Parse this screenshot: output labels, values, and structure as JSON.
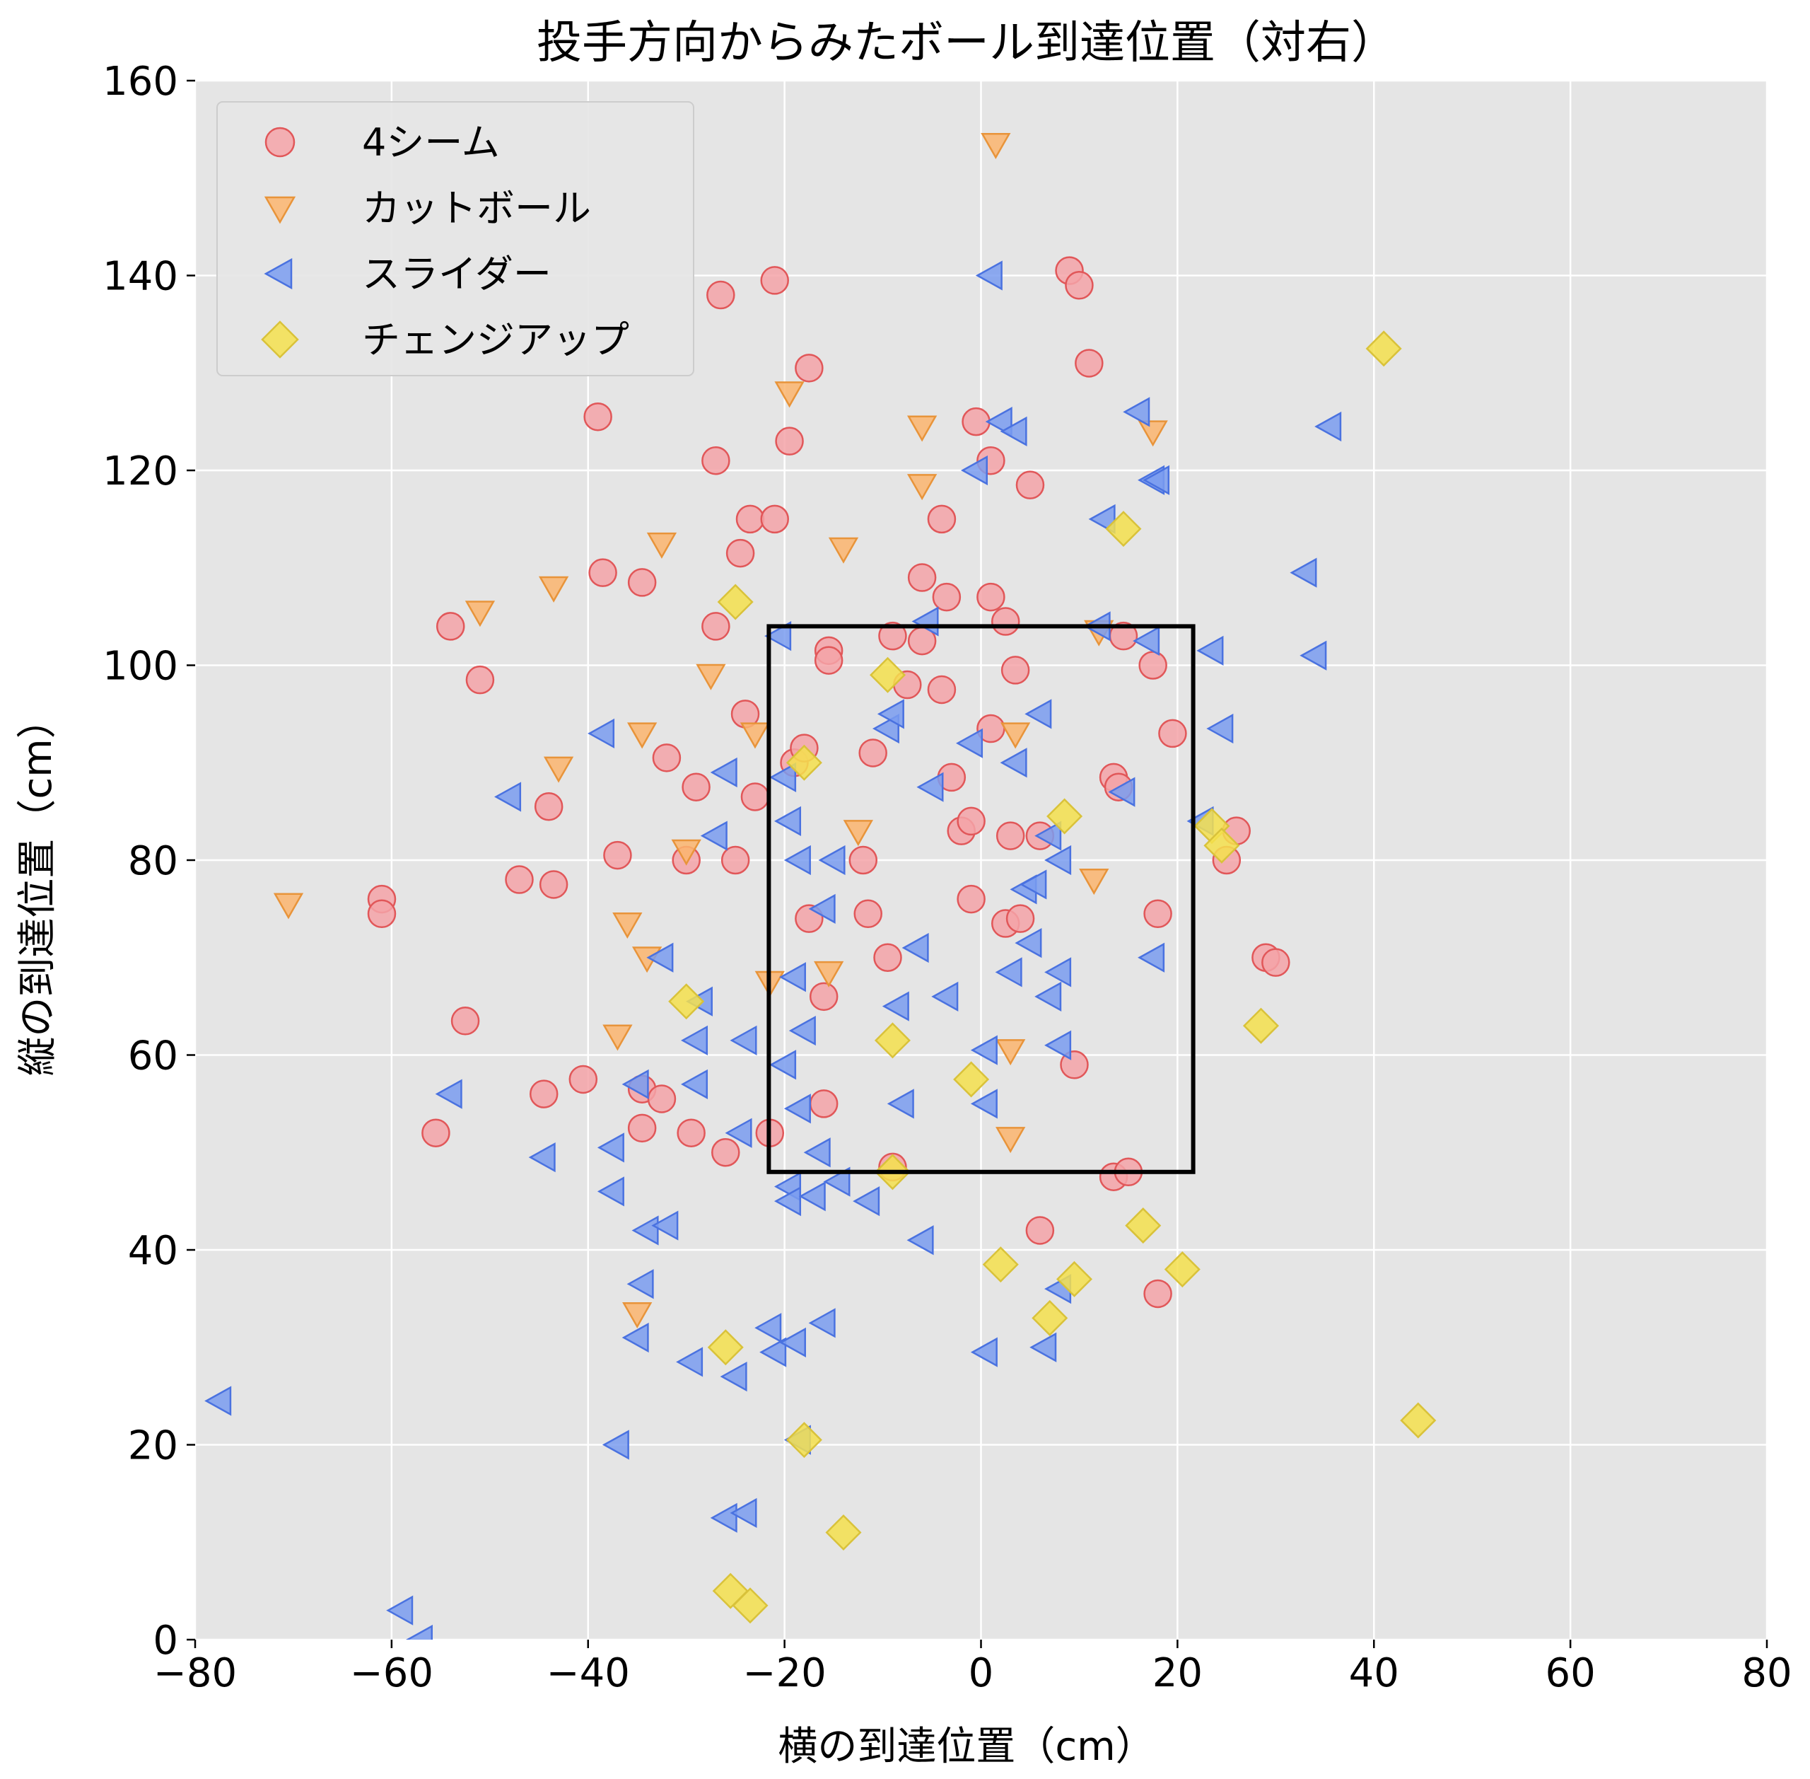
{
  "chart_data": {
    "type": "scatter",
    "title": "投手方向からみたボール到達位置（対右）",
    "xlabel": "横の到達位置（cm）",
    "ylabel": "縦の到達位置（cm）",
    "xlim": [
      -80,
      80
    ],
    "ylim": [
      0,
      160
    ],
    "x_ticks": [
      "−80",
      "−60",
      "−40",
      "−20",
      "0",
      "20",
      "40",
      "60",
      "80"
    ],
    "y_ticks": [
      "0",
      "20",
      "40",
      "60",
      "80",
      "100",
      "120",
      "140",
      "160"
    ],
    "grid": true,
    "legend_position": "top-left",
    "strike_zone": {
      "x": [
        -21.6,
        21.6
      ],
      "y": [
        48,
        104
      ]
    },
    "series": [
      {
        "name": "4シーム",
        "marker": "circle",
        "color": "#f4a3a8",
        "edge": "#e15759",
        "points": [
          [
            -61,
            76
          ],
          [
            -61,
            74.5
          ],
          [
            -54,
            104
          ],
          [
            -51,
            98.5
          ],
          [
            -52.5,
            63.5
          ],
          [
            -55.5,
            52
          ],
          [
            -47,
            78
          ],
          [
            -44.5,
            56
          ],
          [
            -44,
            85.5
          ],
          [
            -43.5,
            77.5
          ],
          [
            -40.5,
            57.5
          ],
          [
            -39,
            125.5
          ],
          [
            -38.5,
            109.5
          ],
          [
            -37,
            80.5
          ],
          [
            -34.5,
            108.5
          ],
          [
            -34.5,
            56.5
          ],
          [
            -34.5,
            52.5
          ],
          [
            -32,
            90.5
          ],
          [
            -32.5,
            55.5
          ],
          [
            -30,
            80
          ],
          [
            -29.5,
            52
          ],
          [
            -29,
            87.5
          ],
          [
            -27,
            104
          ],
          [
            -27,
            121
          ],
          [
            -26.5,
            138
          ],
          [
            -26,
            50
          ],
          [
            -25,
            80
          ],
          [
            -24.5,
            111.5
          ],
          [
            -24,
            95
          ],
          [
            -23.5,
            115
          ],
          [
            -23,
            86.5
          ],
          [
            -21.5,
            52
          ],
          [
            -21,
            139.5
          ],
          [
            -21,
            115
          ],
          [
            -19.5,
            123
          ],
          [
            -19,
            90
          ],
          [
            -18,
            91.5
          ],
          [
            -17.5,
            130.5
          ],
          [
            -17.5,
            74
          ],
          [
            -16,
            55
          ],
          [
            -16,
            66
          ],
          [
            -15.5,
            101.5
          ],
          [
            -15.5,
            100.5
          ],
          [
            -12,
            80
          ],
          [
            -11.5,
            74.5
          ],
          [
            -11,
            91
          ],
          [
            -9.5,
            70
          ],
          [
            -9,
            103
          ],
          [
            -9,
            48.5
          ],
          [
            -7.5,
            98
          ],
          [
            -6,
            109
          ],
          [
            -6,
            102.5
          ],
          [
            -4,
            97.5
          ],
          [
            -4,
            115
          ],
          [
            -3.5,
            107
          ],
          [
            -3,
            88.5
          ],
          [
            -2,
            83
          ],
          [
            -1,
            84
          ],
          [
            -1,
            76
          ],
          [
            -0.5,
            125
          ],
          [
            1,
            107
          ],
          [
            1,
            121
          ],
          [
            1,
            93.5
          ],
          [
            2.5,
            104.5
          ],
          [
            3,
            82.5
          ],
          [
            2.5,
            73.5
          ],
          [
            3.5,
            99.5
          ],
          [
            4,
            74
          ],
          [
            5,
            118.5
          ],
          [
            6,
            82.5
          ],
          [
            6,
            42
          ],
          [
            9,
            140.5
          ],
          [
            9.5,
            59
          ],
          [
            10,
            139
          ],
          [
            11,
            131
          ],
          [
            13.5,
            88.5
          ],
          [
            13.5,
            47.5
          ],
          [
            14,
            87.5
          ],
          [
            14.5,
            103
          ],
          [
            15,
            48
          ],
          [
            17.5,
            100
          ],
          [
            18,
            74.5
          ],
          [
            18,
            35.5
          ],
          [
            19.5,
            93
          ],
          [
            25,
            80
          ],
          [
            26,
            83
          ],
          [
            29,
            70
          ],
          [
            30,
            69.5
          ]
        ]
      },
      {
        "name": "カットボール",
        "marker": "triangle-down",
        "color": "#fbb56e",
        "edge": "#e8943a",
        "points": [
          [
            -70.5,
            75.5
          ],
          [
            -51,
            105.5
          ],
          [
            -43.5,
            108
          ],
          [
            -43,
            89.5
          ],
          [
            -37,
            62
          ],
          [
            -36,
            73.5
          ],
          [
            -35,
            33.5
          ],
          [
            -34.5,
            93
          ],
          [
            -34,
            70
          ],
          [
            -32.5,
            112.5
          ],
          [
            -30,
            81
          ],
          [
            -27.5,
            99
          ],
          [
            -23,
            93
          ],
          [
            -21.5,
            67.5
          ],
          [
            -19.5,
            128
          ],
          [
            -15.5,
            68.5
          ],
          [
            -14,
            112
          ],
          [
            -12.5,
            83
          ],
          [
            -6,
            118.5
          ],
          [
            -6,
            124.5
          ],
          [
            1.5,
            153.5
          ],
          [
            3,
            51.5
          ],
          [
            3,
            60.5
          ],
          [
            3.5,
            93
          ],
          [
            11.5,
            78
          ],
          [
            12,
            103.5
          ],
          [
            17.5,
            124
          ]
        ]
      },
      {
        "name": "スライダー",
        "marker": "triangle-left",
        "color": "#7a9cf0",
        "edge": "#4a72e0",
        "points": [
          [
            -77.5,
            24.5
          ],
          [
            -59,
            3
          ],
          [
            -57,
            0
          ],
          [
            -54,
            56
          ],
          [
            -48,
            86.5
          ],
          [
            -44.5,
            49.5
          ],
          [
            -38.5,
            93
          ],
          [
            -37.5,
            50.5
          ],
          [
            -37.5,
            46
          ],
          [
            -37,
            20
          ],
          [
            -35,
            57
          ],
          [
            -35,
            31
          ],
          [
            -34.5,
            36.5
          ],
          [
            -34,
            42
          ],
          [
            -32,
            42.5
          ],
          [
            -32.5,
            70
          ],
          [
            -28.5,
            65.5
          ],
          [
            -29,
            61.5
          ],
          [
            -29,
            57
          ],
          [
            -29.5,
            28.5
          ],
          [
            -27,
            82.5
          ],
          [
            -26,
            89
          ],
          [
            -26,
            12.5
          ],
          [
            -25,
            27
          ],
          [
            -24.5,
            52
          ],
          [
            -24,
            61.5
          ],
          [
            -24,
            13
          ],
          [
            -21.5,
            32
          ],
          [
            -21,
            29.5
          ],
          [
            -20.5,
            103
          ],
          [
            -20,
            88.5
          ],
          [
            -20,
            59
          ],
          [
            -19.5,
            46.5
          ],
          [
            -19.5,
            84
          ],
          [
            -19.5,
            45
          ],
          [
            -19,
            68
          ],
          [
            -19,
            30.5
          ],
          [
            -18.5,
            80
          ],
          [
            -18.5,
            54.5
          ],
          [
            -18.5,
            20.5
          ],
          [
            -18,
            62.5
          ],
          [
            -17,
            45.5
          ],
          [
            -16.5,
            50
          ],
          [
            -16,
            75
          ],
          [
            -16,
            32.5
          ],
          [
            -15,
            80
          ],
          [
            -14.5,
            47
          ],
          [
            -11.5,
            45
          ],
          [
            -9.5,
            93.5
          ],
          [
            -9,
            95
          ],
          [
            -8.5,
            65
          ],
          [
            -8,
            55
          ],
          [
            -6.5,
            71
          ],
          [
            -6,
            41
          ],
          [
            -5.5,
            104.5
          ],
          [
            -5,
            87.5
          ],
          [
            -3.5,
            66
          ],
          [
            -1,
            92
          ],
          [
            -0.5,
            120
          ],
          [
            0.5,
            60.5
          ],
          [
            0.5,
            55
          ],
          [
            0.5,
            29.5
          ],
          [
            1,
            140
          ],
          [
            2,
            125
          ],
          [
            3,
            68.5
          ],
          [
            3.5,
            90
          ],
          [
            3.5,
            124
          ],
          [
            4.5,
            77
          ],
          [
            5,
            71.5
          ],
          [
            5.5,
            77.5
          ],
          [
            6,
            95
          ],
          [
            6.5,
            30
          ],
          [
            7,
            66
          ],
          [
            7,
            82.5
          ],
          [
            8,
            80
          ],
          [
            8,
            68.5
          ],
          [
            8,
            61
          ],
          [
            8,
            36
          ],
          [
            12.5,
            115
          ],
          [
            12,
            104
          ],
          [
            14.5,
            87
          ],
          [
            16,
            126
          ],
          [
            17,
            102.5
          ],
          [
            17.5,
            70
          ],
          [
            17.5,
            119
          ],
          [
            18,
            119
          ],
          [
            22.5,
            84
          ],
          [
            23.5,
            101.5
          ],
          [
            24.5,
            93.5
          ],
          [
            33,
            109.5
          ],
          [
            34,
            101
          ],
          [
            35.5,
            124.5
          ]
        ]
      },
      {
        "name": "チェンジアップ",
        "marker": "diamond",
        "color": "#f4e04d",
        "edge": "#d9c23a",
        "points": [
          [
            -30,
            65.5
          ],
          [
            -26,
            30
          ],
          [
            -25.5,
            5
          ],
          [
            -25,
            106.5
          ],
          [
            -23.5,
            3.5
          ],
          [
            -18,
            90
          ],
          [
            -18,
            20.5
          ],
          [
            -14,
            11
          ],
          [
            -9.5,
            99
          ],
          [
            -9,
            61.5
          ],
          [
            -9,
            48
          ],
          [
            -1,
            57.5
          ],
          [
            2,
            38.5
          ],
          [
            7,
            33
          ],
          [
            8.5,
            84.5
          ],
          [
            9.5,
            37
          ],
          [
            14.5,
            114
          ],
          [
            16.5,
            42.5
          ],
          [
            20.5,
            38
          ],
          [
            23.5,
            83.5
          ],
          [
            24.5,
            81.5
          ],
          [
            28.5,
            63
          ],
          [
            41,
            132.5
          ],
          [
            44.5,
            22.5
          ]
        ]
      }
    ]
  }
}
